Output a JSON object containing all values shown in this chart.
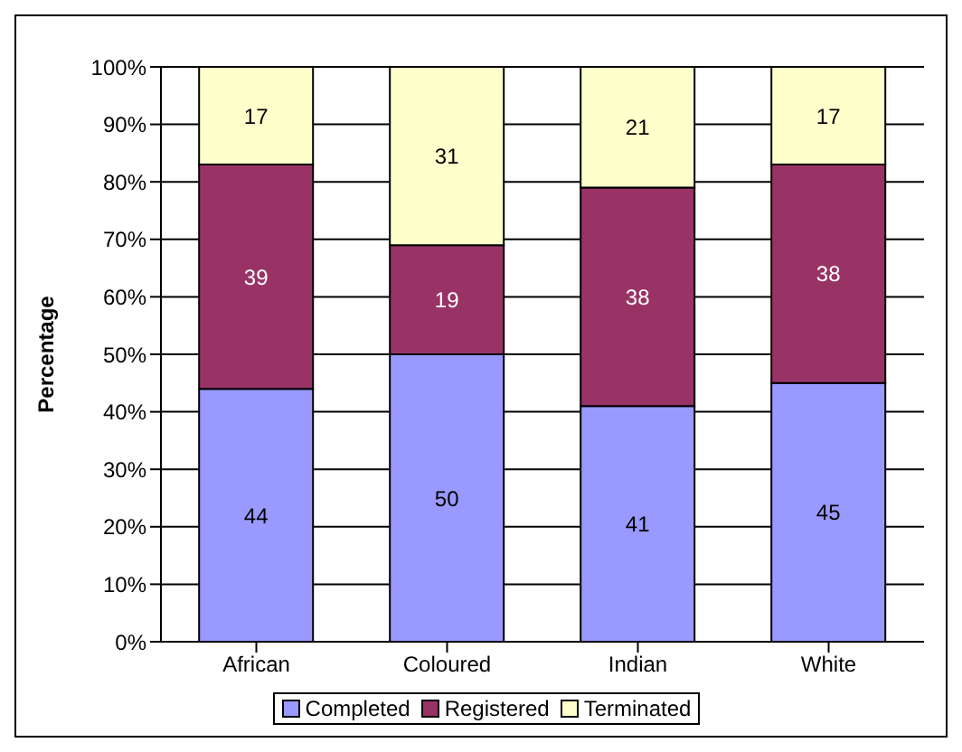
{
  "chart_data": {
    "type": "bar",
    "stacked": true,
    "ylabel": "Percentage",
    "categories": [
      "African",
      "Coloured",
      "Indian",
      "White"
    ],
    "series": [
      {
        "name": "Completed",
        "color": "#9999ff",
        "values": [
          44,
          50,
          41,
          45
        ]
      },
      {
        "name": "Registered",
        "color": "#993366",
        "values": [
          39,
          19,
          38,
          38
        ]
      },
      {
        "name": "Terminated",
        "color": "#ffffcc",
        "values": [
          17,
          31,
          21,
          17
        ]
      }
    ],
    "ylim": [
      0,
      100
    ],
    "yticks": [
      {
        "value": 0,
        "label": "0%"
      },
      {
        "value": 10,
        "label": "10%"
      },
      {
        "value": 20,
        "label": "20%"
      },
      {
        "value": 30,
        "label": "30%"
      },
      {
        "value": 40,
        "label": "40%"
      },
      {
        "value": 50,
        "label": "50%"
      },
      {
        "value": 60,
        "label": "60%"
      },
      {
        "value": 70,
        "label": "70%"
      },
      {
        "value": 80,
        "label": "80%"
      },
      {
        "value": 90,
        "label": "90%"
      },
      {
        "value": 100,
        "label": "100%"
      }
    ],
    "grid": "y",
    "legend": "bottom",
    "data_labels": true
  }
}
